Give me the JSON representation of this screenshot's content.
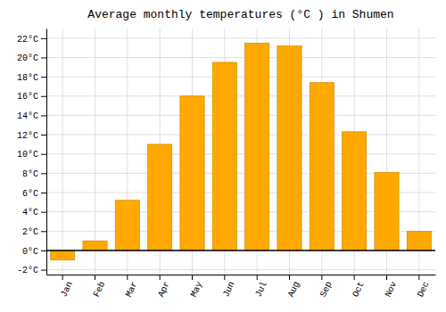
{
  "chart_data": {
    "type": "bar",
    "title": "Average monthly temperatures (°C ) in Shumen",
    "categories": [
      "Jan",
      "Feb",
      "Mar",
      "Apr",
      "May",
      "Jun",
      "Jul",
      "Aug",
      "Sep",
      "Oct",
      "Nov",
      "Dec"
    ],
    "values": [
      -1.0,
      1.0,
      5.2,
      11.0,
      16.0,
      19.5,
      21.5,
      21.2,
      17.4,
      12.3,
      8.1,
      2.0
    ],
    "color": "#FFA800",
    "ylim": [
      -2.5,
      23
    ],
    "yticks": [
      {
        "value": -2,
        "label": "-2°C"
      },
      {
        "value": 0,
        "label": "0°C"
      },
      {
        "value": 2,
        "label": "2°C"
      },
      {
        "value": 4,
        "label": "4°C"
      },
      {
        "value": 6,
        "label": "6°C"
      },
      {
        "value": 8,
        "label": "8°C"
      },
      {
        "value": 10,
        "label": "10°C"
      },
      {
        "value": 12,
        "label": "12°C"
      },
      {
        "value": 14,
        "label": "14°C"
      },
      {
        "value": 16,
        "label": "16°C"
      },
      {
        "value": 18,
        "label": "18°C"
      },
      {
        "value": 20,
        "label": "20°C"
      },
      {
        "value": 22,
        "label": "22°C"
      }
    ],
    "grid": true
  }
}
